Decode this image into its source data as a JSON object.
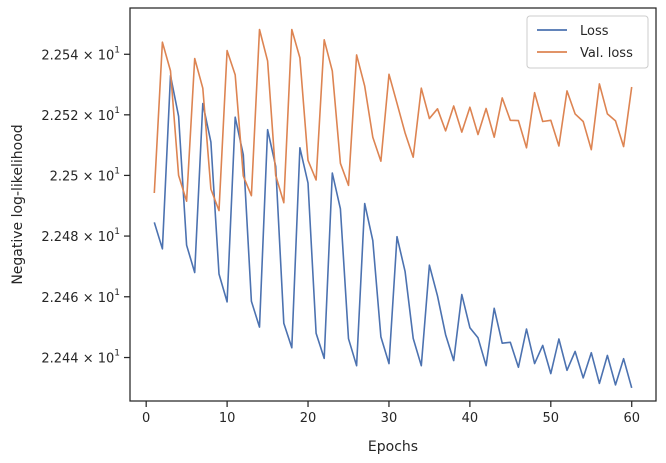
{
  "chart_data": {
    "type": "line",
    "xlabel": "Epochs",
    "ylabel": "Negative log-likelihood",
    "xlim": [
      -2,
      63
    ],
    "ylim": [
      22.4257,
      22.5553
    ],
    "log_y": true,
    "grid": false,
    "legend_position": "top-right",
    "x_ticks": [
      0,
      10,
      20,
      30,
      40,
      50,
      60
    ],
    "y_ticks": [
      {
        "value": 22.44,
        "mantissa": "2.244",
        "exponent": "1"
      },
      {
        "value": 22.46,
        "mantissa": "2.246",
        "exponent": "1"
      },
      {
        "value": 22.48,
        "mantissa": "2.248",
        "exponent": "1"
      },
      {
        "value": 22.5,
        "mantissa": "2.25",
        "exponent": "1"
      },
      {
        "value": 22.52,
        "mantissa": "2.252",
        "exponent": "1"
      },
      {
        "value": 22.54,
        "mantissa": "2.254",
        "exponent": "1"
      }
    ],
    "y_tick_times": "×",
    "y_tick_base": "10",
    "x": [
      1,
      2,
      3,
      4,
      5,
      6,
      7,
      8,
      9,
      10,
      11,
      12,
      13,
      14,
      15,
      16,
      17,
      18,
      19,
      20,
      21,
      22,
      23,
      24,
      25,
      26,
      27,
      28,
      29,
      30,
      31,
      32,
      33,
      34,
      35,
      36,
      37,
      38,
      39,
      40,
      41,
      42,
      43,
      44,
      45,
      46,
      47,
      48,
      49,
      50,
      51,
      52,
      53,
      54,
      55,
      56,
      57,
      58,
      59,
      60
    ],
    "series": [
      {
        "name": "Loss",
        "color": "#4c72b0",
        "values": [
          22.4845,
          22.4758,
          22.533,
          22.5195,
          22.477,
          22.468,
          22.5237,
          22.511,
          22.4675,
          22.4583,
          22.5192,
          22.5068,
          22.4585,
          22.45,
          22.5151,
          22.503,
          22.4513,
          22.4432,
          22.5091,
          22.4975,
          22.448,
          22.4397,
          22.5008,
          22.489,
          22.4462,
          22.4373,
          22.4907,
          22.4785,
          22.4468,
          22.438,
          22.4798,
          22.4683,
          22.4463,
          22.4373,
          22.4704,
          22.4603,
          22.4475,
          22.439,
          22.4607,
          22.4498,
          22.4465,
          22.4373,
          22.4562,
          22.4447,
          22.445,
          22.4368,
          22.4494,
          22.438,
          22.444,
          22.4347,
          22.4461,
          22.4358,
          22.442,
          22.4333,
          22.4416,
          22.4315,
          22.4407,
          22.431,
          22.4396,
          22.43
        ]
      },
      {
        "name": "Val. loss",
        "color": "#dd8452",
        "values": [
          22.4942,
          22.544,
          22.5345,
          22.5,
          22.4915,
          22.5386,
          22.5288,
          22.4955,
          22.4884,
          22.5412,
          22.5332,
          22.4998,
          22.4933,
          22.5482,
          22.5378,
          22.5,
          22.491,
          22.5482,
          22.5388,
          22.505,
          22.4985,
          22.5448,
          22.5345,
          22.504,
          22.4967,
          22.5398,
          22.5295,
          22.5126,
          22.5047,
          22.5334,
          22.5238,
          22.514,
          22.506,
          22.5288,
          22.5188,
          22.522,
          22.5147,
          22.5229,
          22.5143,
          22.5225,
          22.5135,
          22.5221,
          22.5126,
          22.5256,
          22.5182,
          22.5181,
          22.5091,
          22.5273,
          22.5178,
          22.5182,
          22.5097,
          22.5279,
          22.5203,
          22.5178,
          22.5085,
          22.5302,
          22.5203,
          22.518,
          22.5095,
          22.5292
        ]
      }
    ]
  }
}
